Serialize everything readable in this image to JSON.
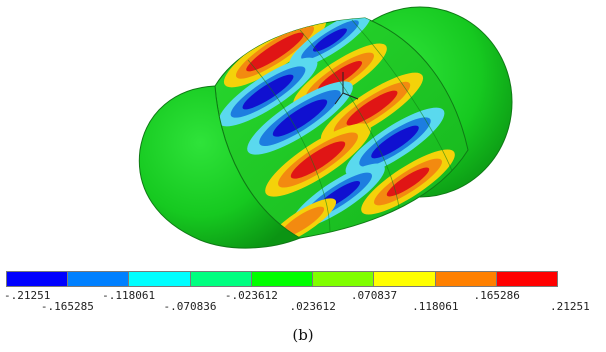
{
  "colorbar": {
    "colors": [
      "#0000ff",
      "#0080ff",
      "#00ffff",
      "#00ff80",
      "#00ff00",
      "#80ff00",
      "#ffff00",
      "#ff8000",
      "#ff0000"
    ],
    "labels": [
      "-.21251",
      "-.165285",
      "-.118061",
      "-.070836",
      "-.023612",
      ".023612",
      ".070837",
      ".118061",
      ".165286",
      ".21251"
    ]
  },
  "caption": "(b)"
}
